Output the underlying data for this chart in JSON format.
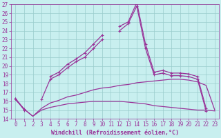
{
  "xlabel": "Windchill (Refroidissement éolien,°C)",
  "x_hours": [
    0,
    1,
    2,
    3,
    4,
    5,
    6,
    7,
    8,
    9,
    10,
    11,
    12,
    13,
    14,
    15,
    16,
    17,
    18,
    19,
    20,
    21,
    22,
    23
  ],
  "line1_y": [
    16.3,
    15.0,
    null,
    null,
    18.8,
    19.3,
    20.2,
    20.8,
    21.5,
    22.5,
    23.5,
    null,
    24.5,
    25.0,
    27.2,
    22.5,
    19.3,
    19.5,
    19.2,
    19.2,
    19.1,
    18.8,
    15.2,
    null
  ],
  "line2_y": [
    16.3,
    15.1,
    null,
    16.2,
    18.5,
    19.0,
    19.8,
    20.5,
    21.0,
    22.0,
    23.0,
    null,
    24.0,
    24.8,
    26.8,
    22.0,
    19.0,
    19.2,
    18.9,
    18.9,
    18.8,
    18.5,
    14.9,
    null
  ],
  "line3_y": [
    16.2,
    15.1,
    14.3,
    15.0,
    15.3,
    15.5,
    15.7,
    15.8,
    15.9,
    16.0,
    16.0,
    16.0,
    16.0,
    15.9,
    15.8,
    15.7,
    15.5,
    15.4,
    15.3,
    15.2,
    15.1,
    15.0,
    15.0,
    14.9
  ],
  "line4_y": [
    16.2,
    15.1,
    14.3,
    15.2,
    15.8,
    16.1,
    16.5,
    16.7,
    17.0,
    17.3,
    17.5,
    17.6,
    17.8,
    17.9,
    18.1,
    18.2,
    18.3,
    18.4,
    18.5,
    18.5,
    18.4,
    18.2,
    17.8,
    15.0
  ],
  "line_color": "#993399",
  "background_color": "#c8efef",
  "grid_color": "#99cccc",
  "ylim": [
    14,
    27
  ],
  "xlim_min": -0.5,
  "xlim_max": 23.5,
  "yticks": [
    14,
    15,
    16,
    17,
    18,
    19,
    20,
    21,
    22,
    23,
    24,
    25,
    26,
    27
  ],
  "xticks": [
    0,
    1,
    2,
    3,
    4,
    5,
    6,
    7,
    8,
    9,
    10,
    11,
    12,
    13,
    14,
    15,
    16,
    17,
    18,
    19,
    20,
    21,
    22,
    23
  ],
  "tick_color": "#993399",
  "label_color": "#993399",
  "label_fontsize": 6,
  "tick_fontsize": 5.5
}
